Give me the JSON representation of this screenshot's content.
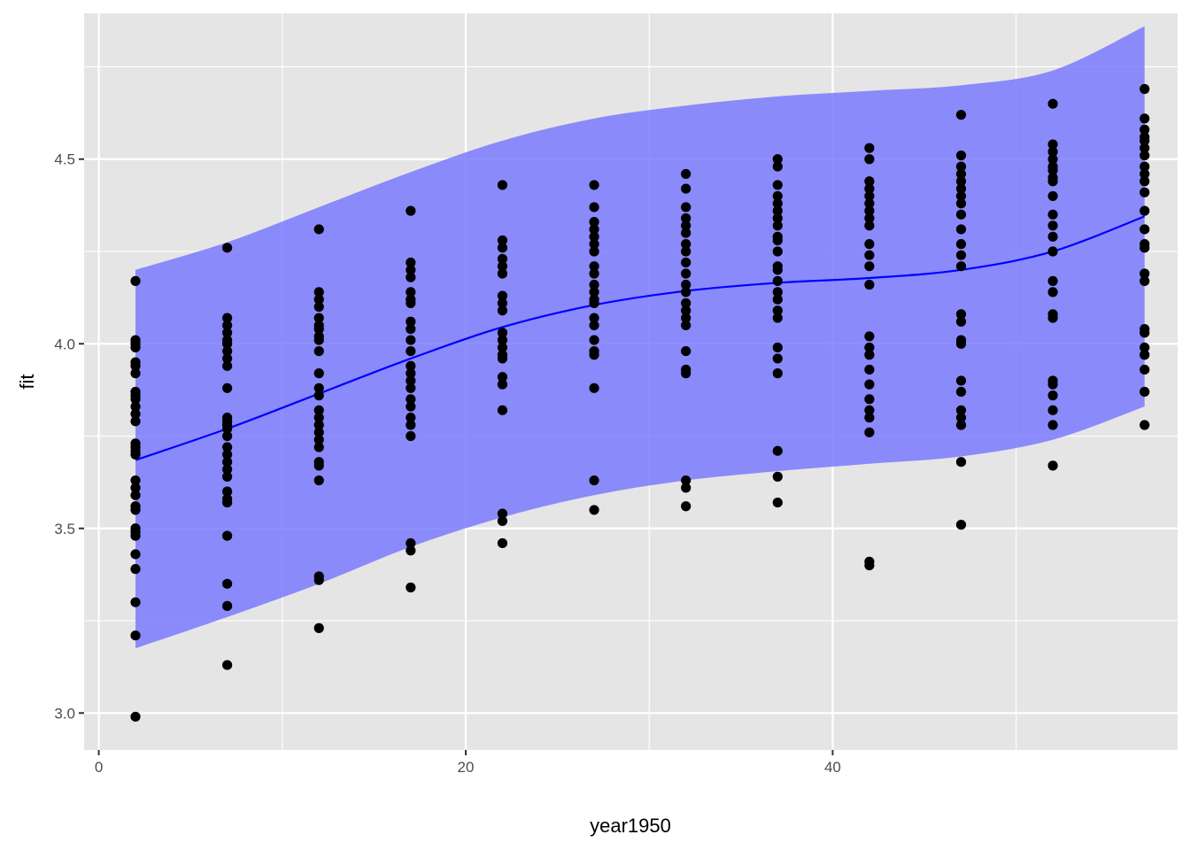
{
  "chart_data": {
    "type": "scatter",
    "xlabel": "year1950",
    "ylabel": "fit",
    "xlim": [
      -0.8,
      58.8
    ],
    "ylim": [
      2.9,
      4.895
    ],
    "x_ticks": [
      0,
      20,
      40
    ],
    "x_tick_labels": [
      "0",
      "20",
      "40"
    ],
    "y_ticks": [
      3.0,
      3.5,
      4.0,
      4.5
    ],
    "y_tick_labels": [
      "3.0",
      "3.5",
      "4.0",
      "4.5"
    ],
    "grid": true,
    "legend": "none",
    "colors": {
      "panel_background": "#e5e5e5",
      "grid": "#ffffff",
      "points": "#000000",
      "fit_line": "#0000ff",
      "ribbon": "#7373ff",
      "ribbon_opacity": 0.8
    },
    "fit_line": {
      "x": [
        2,
        7,
        12,
        17,
        22,
        27,
        32,
        37,
        42,
        47,
        52,
        57
      ],
      "y": [
        3.685,
        3.77,
        3.865,
        3.96,
        4.045,
        4.105,
        4.143,
        4.165,
        4.178,
        4.2,
        4.25,
        4.345
      ]
    },
    "ribbon": {
      "x": [
        2,
        7,
        12,
        17,
        22,
        27,
        32,
        37,
        42,
        47,
        52,
        57
      ],
      "lower": [
        3.175,
        3.26,
        3.35,
        3.45,
        3.53,
        3.59,
        3.63,
        3.655,
        3.675,
        3.695,
        3.74,
        3.83
      ],
      "upper": [
        4.2,
        4.275,
        4.37,
        4.465,
        4.55,
        4.61,
        4.645,
        4.67,
        4.685,
        4.7,
        4.74,
        4.86
      ]
    },
    "points": [
      {
        "x": 2,
        "y": [
          4.17,
          4.01,
          4.0,
          3.99,
          3.95,
          3.94,
          3.92,
          3.87,
          3.86,
          3.85,
          3.83,
          3.81,
          3.79,
          3.73,
          3.72,
          3.71,
          3.7,
          3.63,
          3.61,
          3.59,
          3.56,
          3.55,
          3.5,
          3.49,
          3.48,
          3.43,
          3.39,
          3.3,
          3.21,
          2.99
        ]
      },
      {
        "x": 7,
        "y": [
          4.26,
          4.07,
          4.05,
          4.03,
          4.01,
          4.0,
          3.98,
          3.96,
          3.94,
          3.88,
          3.8,
          3.79,
          3.78,
          3.77,
          3.75,
          3.72,
          3.7,
          3.68,
          3.66,
          3.64,
          3.6,
          3.58,
          3.57,
          3.48,
          3.35,
          3.29,
          3.13
        ]
      },
      {
        "x": 12,
        "y": [
          4.31,
          4.14,
          4.12,
          4.1,
          4.07,
          4.05,
          4.04,
          4.02,
          4.01,
          3.98,
          3.92,
          3.88,
          3.86,
          3.82,
          3.8,
          3.78,
          3.76,
          3.74,
          3.72,
          3.68,
          3.67,
          3.63,
          3.37,
          3.36,
          3.23
        ]
      },
      {
        "x": 17,
        "y": [
          4.36,
          4.22,
          4.2,
          4.18,
          4.14,
          4.12,
          4.11,
          4.06,
          4.04,
          4.01,
          3.98,
          3.94,
          3.92,
          3.9,
          3.88,
          3.85,
          3.83,
          3.8,
          3.78,
          3.75,
          3.46,
          3.44,
          3.34
        ]
      },
      {
        "x": 22,
        "y": [
          4.43,
          4.28,
          4.26,
          4.23,
          4.21,
          4.19,
          4.13,
          4.11,
          4.09,
          4.03,
          4.01,
          3.99,
          3.97,
          3.96,
          3.91,
          3.89,
          3.82,
          3.54,
          3.52,
          3.46
        ]
      },
      {
        "x": 27,
        "y": [
          4.43,
          4.37,
          4.33,
          4.31,
          4.29,
          4.27,
          4.25,
          4.21,
          4.19,
          4.16,
          4.14,
          4.12,
          4.11,
          4.07,
          4.05,
          4.01,
          3.98,
          3.97,
          3.88,
          3.63,
          3.55
        ]
      },
      {
        "x": 32,
        "y": [
          4.46,
          4.42,
          4.37,
          4.34,
          4.32,
          4.3,
          4.27,
          4.25,
          4.22,
          4.19,
          4.16,
          4.14,
          4.11,
          4.09,
          4.07,
          4.05,
          3.98,
          3.93,
          3.92,
          3.63,
          3.61,
          3.56
        ]
      },
      {
        "x": 37,
        "y": [
          4.5,
          4.48,
          4.43,
          4.4,
          4.38,
          4.36,
          4.34,
          4.32,
          4.29,
          4.28,
          4.25,
          4.21,
          4.2,
          4.17,
          4.14,
          4.12,
          4.09,
          4.07,
          3.99,
          3.96,
          3.92,
          3.71,
          3.64,
          3.57
        ]
      },
      {
        "x": 42,
        "y": [
          4.53,
          4.5,
          4.44,
          4.42,
          4.4,
          4.38,
          4.36,
          4.34,
          4.32,
          4.27,
          4.24,
          4.21,
          4.16,
          4.02,
          3.99,
          3.97,
          3.93,
          3.89,
          3.85,
          3.82,
          3.8,
          3.76,
          3.41,
          3.4
        ]
      },
      {
        "x": 47,
        "y": [
          4.62,
          4.51,
          4.48,
          4.46,
          4.44,
          4.42,
          4.4,
          4.38,
          4.35,
          4.31,
          4.27,
          4.24,
          4.21,
          4.08,
          4.06,
          4.01,
          4.0,
          3.9,
          3.87,
          3.82,
          3.8,
          3.78,
          3.68,
          3.51
        ]
      },
      {
        "x": 52,
        "y": [
          4.65,
          4.54,
          4.52,
          4.5,
          4.48,
          4.47,
          4.45,
          4.44,
          4.4,
          4.35,
          4.32,
          4.29,
          4.25,
          4.17,
          4.14,
          4.08,
          4.07,
          3.9,
          3.89,
          3.86,
          3.82,
          3.78,
          3.67
        ]
      },
      {
        "x": 57,
        "y": [
          4.69,
          4.61,
          4.58,
          4.56,
          4.55,
          4.53,
          4.51,
          4.48,
          4.46,
          4.44,
          4.41,
          4.36,
          4.31,
          4.27,
          4.26,
          4.19,
          4.17,
          4.04,
          4.03,
          3.99,
          3.97,
          3.93,
          3.87,
          3.78
        ]
      }
    ]
  }
}
